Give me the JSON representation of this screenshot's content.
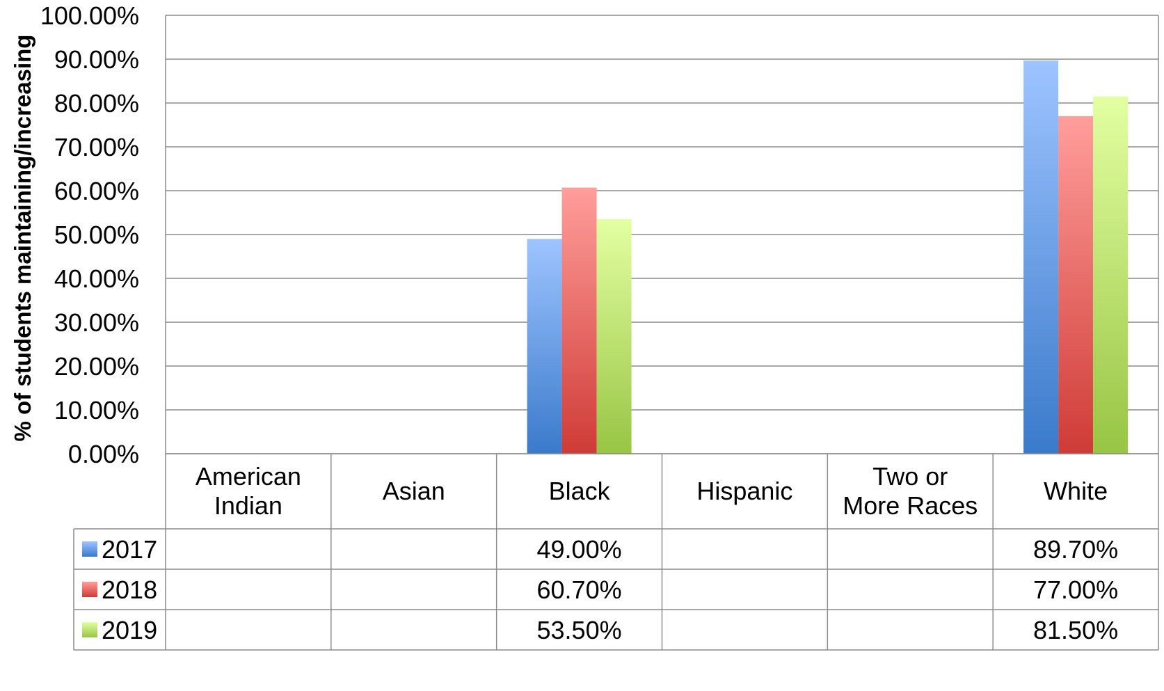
{
  "chart_data": {
    "type": "bar",
    "title": "",
    "xlabel": "",
    "ylabel": "% of students maintaining/increasing",
    "ylim": [
      0,
      100
    ],
    "y_ticks": [
      "0.00%",
      "10.00%",
      "20.00%",
      "30.00%",
      "40.00%",
      "50.00%",
      "60.00%",
      "70.00%",
      "80.00%",
      "90.00%",
      "100.00%"
    ],
    "categories": [
      [
        "American",
        "Indian"
      ],
      [
        "Asian"
      ],
      [
        "Black"
      ],
      [
        "Hispanic"
      ],
      [
        "Two or",
        "More Races"
      ],
      [
        "White"
      ]
    ],
    "series": [
      {
        "name": "2017",
        "values": [
          null,
          null,
          49.0,
          null,
          null,
          89.7
        ],
        "labels": [
          "",
          "",
          "49.00%",
          "",
          "",
          "89.70%"
        ],
        "color_top": "#9ec4ff",
        "color_bottom": "#3a7acb"
      },
      {
        "name": "2018",
        "values": [
          null,
          null,
          60.7,
          null,
          null,
          77.0
        ],
        "labels": [
          "",
          "",
          "60.70%",
          "",
          "",
          "77.00%"
        ],
        "color_top": "#ff9e9b",
        "color_bottom": "#cf3b36"
      },
      {
        "name": "2019",
        "values": [
          null,
          null,
          53.5,
          null,
          null,
          81.5
        ],
        "labels": [
          "",
          "",
          "53.50%",
          "",
          "",
          "81.50%"
        ],
        "color_top": "#e3ffa2",
        "color_bottom": "#98c544"
      }
    ],
    "grid": true,
    "legend": "data-table"
  }
}
